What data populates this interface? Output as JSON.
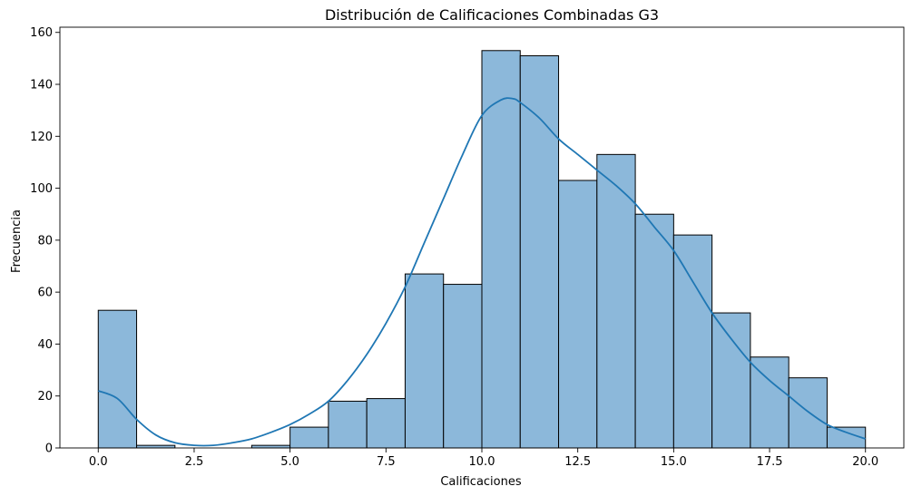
{
  "chart_data": {
    "type": "bar",
    "subtype": "histogram",
    "title": "Distribución de Calificaciones Combinadas G3",
    "xlabel": "Calificaciones",
    "ylabel": "Frecuencia",
    "xlim": [
      -1,
      21
    ],
    "ylim": [
      0,
      162
    ],
    "xticks": [
      0.0,
      2.5,
      5.0,
      7.5,
      10.0,
      12.5,
      15.0,
      17.5,
      20.0
    ],
    "xtick_labels": [
      "0.0",
      "2.5",
      "5.0",
      "7.5",
      "10.0",
      "12.5",
      "15.0",
      "17.5",
      "20.0"
    ],
    "yticks": [
      0,
      20,
      40,
      60,
      80,
      100,
      120,
      140,
      160
    ],
    "ytick_labels": [
      "0",
      "20",
      "40",
      "60",
      "80",
      "100",
      "120",
      "140",
      "160"
    ],
    "bins": [
      {
        "start": 0,
        "end": 1,
        "count": 53
      },
      {
        "start": 1,
        "end": 2,
        "count": 1
      },
      {
        "start": 2,
        "end": 3,
        "count": 0
      },
      {
        "start": 3,
        "end": 4,
        "count": 0
      },
      {
        "start": 4,
        "end": 5,
        "count": 1
      },
      {
        "start": 5,
        "end": 6,
        "count": 8
      },
      {
        "start": 6,
        "end": 7,
        "count": 18
      },
      {
        "start": 7,
        "end": 8,
        "count": 19
      },
      {
        "start": 8,
        "end": 9,
        "count": 67
      },
      {
        "start": 9,
        "end": 10,
        "count": 63
      },
      {
        "start": 10,
        "end": 11,
        "count": 153
      },
      {
        "start": 11,
        "end": 12,
        "count": 151
      },
      {
        "start": 12,
        "end": 13,
        "count": 103
      },
      {
        "start": 13,
        "end": 14,
        "count": 113
      },
      {
        "start": 14,
        "end": 15,
        "count": 90
      },
      {
        "start": 15,
        "end": 16,
        "count": 82
      },
      {
        "start": 16,
        "end": 17,
        "count": 52
      },
      {
        "start": 17,
        "end": 18,
        "count": 35
      },
      {
        "start": 18,
        "end": 19,
        "count": 27
      },
      {
        "start": 19,
        "end": 20,
        "count": 8
      }
    ],
    "kde": {
      "x": [
        0,
        0.5,
        1,
        1.5,
        2,
        2.5,
        3,
        3.5,
        4,
        4.5,
        5,
        5.5,
        6,
        6.5,
        7,
        7.5,
        8,
        8.5,
        9,
        9.5,
        10,
        10.5,
        10.8,
        11,
        11.5,
        12,
        12.5,
        13,
        13.5,
        14,
        14.5,
        15,
        15.5,
        16,
        16.5,
        17,
        17.5,
        18,
        18.5,
        19,
        19.5,
        20
      ],
      "y": [
        22,
        19,
        11,
        5,
        2,
        1,
        1,
        2,
        3.5,
        6,
        9,
        13,
        18,
        26,
        36,
        48,
        62,
        79,
        96,
        113,
        128,
        134,
        134.5,
        133,
        127,
        119,
        113,
        107,
        101,
        94,
        85,
        76,
        64,
        52,
        42,
        33,
        26,
        20,
        14,
        9,
        6,
        3.5
      ]
    },
    "bar_color": "#8cb8da",
    "bar_edge_color": "#000000",
    "line_color": "#1f77b4",
    "grid": false,
    "legend": "none"
  }
}
